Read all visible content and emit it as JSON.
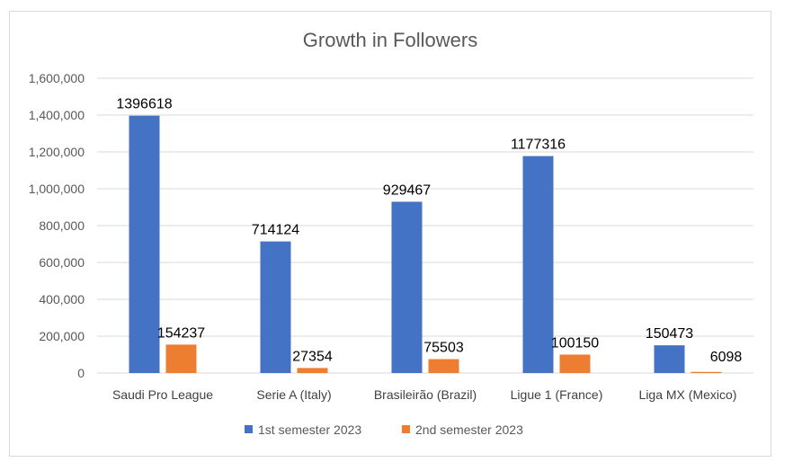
{
  "chart_data": {
    "type": "bar",
    "title": "Growth in Followers",
    "categories": [
      "Saudi Pro League",
      "Serie A (Italy)",
      "Brasileirão (Brazil)",
      "Ligue 1 (France)",
      "Liga MX (Mexico)"
    ],
    "series": [
      {
        "name": "1st semester 2023",
        "color": "#4472C4",
        "values": [
          1396618,
          714124,
          929467,
          1177316,
          150473
        ]
      },
      {
        "name": "2nd semester 2023",
        "color": "#ED7D31",
        "values": [
          154237,
          27354,
          75503,
          100150,
          6098
        ]
      }
    ],
    "ylim": [
      0,
      1600000
    ],
    "yticks": [
      0,
      200000,
      400000,
      600000,
      800000,
      1000000,
      1200000,
      1400000,
      1600000
    ],
    "ytick_labels": [
      "0",
      "200,000",
      "400,000",
      "600,000",
      "800,000",
      "1,000,000",
      "1,200,000",
      "1,400,000",
      "1,600,000"
    ],
    "xlabel": "",
    "ylabel": "",
    "grid": true,
    "legend_position": "bottom"
  }
}
